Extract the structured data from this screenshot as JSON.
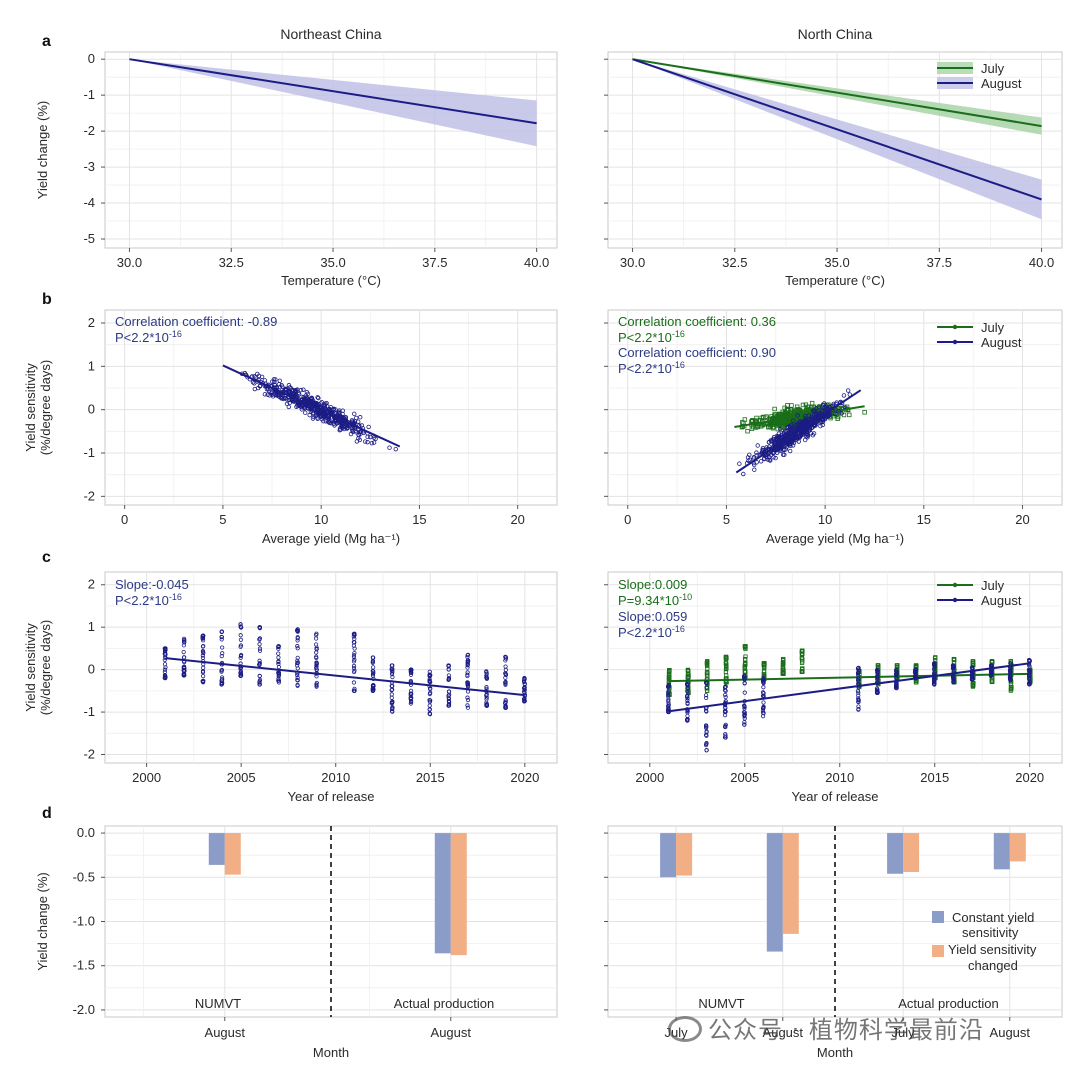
{
  "colors": {
    "july": "#1a6e1a",
    "august": "#1c1c85",
    "july_band": "#a8d4a8",
    "august_band": "#c0c0e6",
    "bar_constant": "#8c9cc9",
    "bar_changed": "#f2ae84",
    "grid": "#e3e3e3",
    "panel_border": "#c8c8c8",
    "text_dark": "#2a2a2a",
    "annot_blue": "#2d3a84"
  },
  "panel_letters": [
    "a",
    "b",
    "c",
    "d"
  ],
  "columns": [
    "Northeast China",
    "North China"
  ],
  "legend": {
    "july": "July",
    "august": "August"
  },
  "bar_legend": {
    "constant_line1": "Constant yield",
    "constant_line2": "sensitivity",
    "changed_line1": "Yield sensitivity",
    "changed_line2": "changed"
  },
  "watermark": "公众号 · 植物科学最前沿",
  "chart_data": [
    {
      "id": "a-left",
      "panel": "a",
      "type": "line",
      "title": "Northeast China",
      "xlabel": "Temperature (°C)",
      "ylabel": "Yield change (%)",
      "xlim": [
        29.4,
        40.5
      ],
      "ylim": [
        -5.25,
        0.2
      ],
      "xticks": [
        "30.0",
        "32.5",
        "35.0",
        "37.5",
        "40.0"
      ],
      "yticks": [
        "0",
        "-1",
        "-2",
        "-3",
        "-4",
        "-5"
      ],
      "series": [
        {
          "name": "August",
          "x": [
            30,
            40
          ],
          "y": [
            0,
            -1.78
          ],
          "band_lower": [
            0,
            -2.42
          ],
          "band_upper": [
            0,
            -1.15
          ]
        }
      ]
    },
    {
      "id": "a-right",
      "panel": "a",
      "type": "line",
      "title": "North China",
      "xlabel": "Temperature (°C)",
      "ylabel": "",
      "xlim": [
        29.4,
        40.5
      ],
      "ylim": [
        -5.25,
        0.2
      ],
      "xticks": [
        "30.0",
        "32.5",
        "35.0",
        "37.5",
        "40.0"
      ],
      "yticks": [],
      "legend_position": "top-right",
      "series": [
        {
          "name": "July",
          "x": [
            30,
            40
          ],
          "y": [
            0,
            -1.86
          ],
          "band_lower": [
            0,
            -2.1
          ],
          "band_upper": [
            0,
            -1.62
          ]
        },
        {
          "name": "August",
          "x": [
            30,
            40
          ],
          "y": [
            0,
            -3.9
          ],
          "band_lower": [
            0,
            -4.45
          ],
          "band_upper": [
            0,
            -3.35
          ]
        }
      ]
    },
    {
      "id": "b-left",
      "panel": "b",
      "type": "scatter",
      "xlabel": "Average yield (Mg ha⁻¹)",
      "ylabel_line1": "Yield sensitivity",
      "ylabel_line2": "(%/degree days)",
      "xlim": [
        -1,
        22
      ],
      "ylim": [
        -2.2,
        2.3
      ],
      "xticks": [
        "0",
        "5",
        "10",
        "15",
        "20"
      ],
      "yticks": [
        "2",
        "1",
        "0",
        "-1",
        "-2"
      ],
      "annotations": [
        {
          "text": "Correlation coefficient: -0.89",
          "sup_base": "P<2.2*10",
          "sup": "-16",
          "series": "August"
        }
      ],
      "series": [
        {
          "name": "August",
          "x_range": [
            4.7,
            14.3
          ],
          "fit": {
            "x": [
              5,
              14
            ],
            "y": [
              1.02,
              -0.85
            ]
          },
          "noise": 0.18
        }
      ]
    },
    {
      "id": "b-right",
      "panel": "b",
      "type": "scatter",
      "xlabel": "Average yield (Mg ha⁻¹)",
      "ylabel": "",
      "xlim": [
        -1,
        22
      ],
      "ylim": [
        -2.2,
        2.3
      ],
      "xticks": [
        "0",
        "5",
        "10",
        "15",
        "20"
      ],
      "yticks": [],
      "legend_position": "top-right",
      "annotations": [
        {
          "text": "Correlation coefficient: 0.36",
          "sup_base": "P<2.2*10",
          "sup": "-16",
          "series": "July"
        },
        {
          "text": "Correlation coefficient: 0.90",
          "sup_base": "P<2.2*10",
          "sup": "-16",
          "series": "August"
        }
      ],
      "series": [
        {
          "name": "July",
          "x_range": [
            5.4,
            12
          ],
          "fit": {
            "x": [
              5.4,
              12
            ],
            "y": [
              -0.4,
              0.08
            ]
          },
          "noise": 0.17
        },
        {
          "name": "August",
          "x_range": [
            5.4,
            11.8
          ],
          "fit": {
            "x": [
              5.5,
              11.8
            ],
            "y": [
              -1.45,
              0.45
            ]
          },
          "noise": 0.2
        }
      ]
    },
    {
      "id": "c-left",
      "panel": "c",
      "type": "scatter",
      "xlabel": "Year of release",
      "ylabel_line1": "Yield sensitivity",
      "ylabel_line2": "(%/degree days)",
      "xlim": [
        1997.8,
        2021.7
      ],
      "ylim": [
        -2.2,
        2.3
      ],
      "xticks": [
        "2000",
        "2005",
        "2010",
        "2015",
        "2020"
      ],
      "yticks": [
        "2",
        "1",
        "0",
        "-1",
        "-2"
      ],
      "annotations": [
        {
          "text": "Slope:-0.045",
          "sup_base": "P<2.2*10",
          "sup": "-16",
          "series": "August"
        }
      ],
      "series": [
        {
          "name": "August",
          "years": [
            2001,
            2002,
            2003,
            2004,
            2005,
            2006,
            2007,
            2008,
            2009,
            2011,
            2012,
            2013,
            2014,
            2015,
            2016,
            2017,
            2018,
            2019,
            2020
          ],
          "year_min": [
            -0.2,
            -0.15,
            -0.3,
            -0.35,
            -0.15,
            -0.35,
            -0.3,
            -0.4,
            -0.45,
            -0.5,
            -0.5,
            -1.0,
            -0.8,
            -1.05,
            -0.85,
            -0.9,
            -0.85,
            -0.9,
            -0.75
          ],
          "year_max": [
            0.5,
            0.75,
            0.8,
            0.9,
            1.1,
            1.0,
            0.55,
            0.95,
            0.85,
            0.85,
            0.3,
            0.1,
            0.0,
            -0.05,
            0.1,
            0.35,
            0.0,
            0.3,
            -0.2
          ],
          "fit": {
            "x": [
              2001,
              2020
            ],
            "y": [
              0.27,
              -0.6
            ]
          }
        }
      ]
    },
    {
      "id": "c-right",
      "panel": "c",
      "type": "scatter",
      "xlabel": "Year of release",
      "ylabel": "",
      "xlim": [
        1997.8,
        2021.7
      ],
      "ylim": [
        -2.2,
        2.3
      ],
      "xticks": [
        "2000",
        "2005",
        "2010",
        "2015",
        "2020"
      ],
      "yticks": [],
      "legend_position": "top-right",
      "annotations": [
        {
          "text": "Slope:0.009",
          "sup_base": "P=9.34*10",
          "sup": "-10",
          "series": "July"
        },
        {
          "text": "Slope:0.059",
          "sup_base": "P<2.2*10",
          "sup": "-16",
          "series": "August"
        }
      ],
      "series": [
        {
          "name": "July",
          "years": [
            2001,
            2002,
            2003,
            2004,
            2005,
            2006,
            2007,
            2008,
            2011,
            2012,
            2013,
            2014,
            2015,
            2016,
            2017,
            2018,
            2019,
            2020
          ],
          "year_min": [
            -0.6,
            -0.55,
            -0.5,
            -0.3,
            -0.2,
            -0.25,
            -0.1,
            -0.05,
            -0.4,
            -0.35,
            -0.2,
            -0.3,
            -0.2,
            -0.3,
            -0.4,
            -0.3,
            -0.5,
            -0.3
          ],
          "year_max": [
            0.0,
            0.0,
            0.2,
            0.3,
            0.55,
            0.15,
            0.25,
            0.45,
            0.0,
            0.1,
            0.1,
            0.1,
            0.3,
            0.25,
            0.2,
            0.2,
            0.2,
            0.0
          ],
          "fit": {
            "x": [
              2001,
              2020
            ],
            "y": [
              -0.27,
              -0.1
            ]
          }
        },
        {
          "name": "August",
          "years": [
            2001,
            2002,
            2003,
            2004,
            2005,
            2006,
            2011,
            2012,
            2013,
            2014,
            2015,
            2016,
            2017,
            2018,
            2019,
            2020
          ],
          "year_min": [
            -1.0,
            -1.2,
            -1.9,
            -1.6,
            -1.3,
            -1.1,
            -0.95,
            -0.55,
            -0.45,
            -0.2,
            -0.35,
            -0.3,
            -0.25,
            -0.15,
            -0.25,
            -0.35
          ],
          "year_max": [
            -0.35,
            -0.3,
            -0.3,
            -0.4,
            -0.15,
            -0.2,
            0.05,
            0.0,
            0.0,
            0.0,
            0.15,
            0.1,
            0.05,
            0.1,
            0.15,
            0.25
          ],
          "fit": {
            "x": [
              2001,
              2020
            ],
            "y": [
              -0.98,
              0.15
            ]
          }
        }
      ]
    },
    {
      "id": "d-left",
      "panel": "d",
      "type": "bar",
      "xlabel": "Month",
      "ylabel": "Yield change (%)",
      "ylim": [
        -2.08,
        0.08
      ],
      "yticks": [
        "0.0",
        "-0.5",
        "-1.0",
        "-1.5",
        "-2.0"
      ],
      "groups": [
        "NUMVT",
        "Actual production"
      ],
      "categories": [
        "August",
        "August"
      ],
      "series": [
        {
          "name": "Constant yield sensitivity",
          "values": [
            -0.36,
            -1.36
          ]
        },
        {
          "name": "Yield sensitivity changed",
          "values": [
            -0.47,
            -1.38
          ]
        }
      ]
    },
    {
      "id": "d-right",
      "panel": "d",
      "type": "bar",
      "xlabel": "Month",
      "ylabel": "",
      "ylim": [
        -2.08,
        0.08
      ],
      "yticks": [],
      "groups": [
        "NUMVT",
        "Actual production"
      ],
      "categories": [
        "July",
        "August",
        "July",
        "August"
      ],
      "legend_position": "bottom-right",
      "series": [
        {
          "name": "Constant yield sensitivity",
          "values": [
            -0.5,
            -1.34,
            -0.46,
            -0.41
          ]
        },
        {
          "name": "Yield sensitivity changed",
          "values": [
            -0.48,
            -1.14,
            -0.44,
            -0.32
          ]
        }
      ]
    }
  ]
}
